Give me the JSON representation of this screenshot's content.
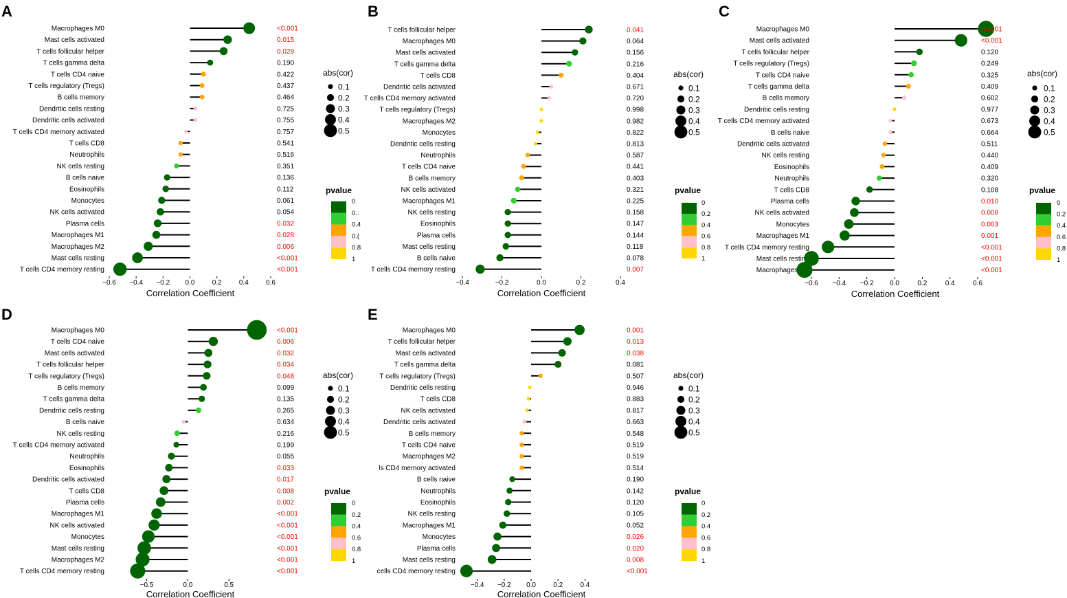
{
  "figure": {
    "xlabel": "Correlation Coefficient",
    "size_legend_title": "abs(cor)",
    "size_legend_labels": [
      "0.1",
      "0.2",
      "0.3",
      "0.4",
      "0.5"
    ],
    "pvalue_legend_title": "pvalue",
    "pvalue_legend_labels": [
      "0",
      "0.2",
      "0.4",
      "0.6",
      "0.8",
      "1"
    ],
    "pvalue_legend_labels_panel_a": [
      "0",
      "0.:",
      "0.4",
      "0.(",
      "0.8",
      "1"
    ],
    "pvalue_colors": [
      "#006400",
      "#32CD32",
      "#FFA500",
      "#FFC0CB",
      "#FFD700"
    ],
    "line_color": "#000000",
    "significant_pvalue_color": "#FF0000"
  },
  "chart_data": [
    {
      "panel": "A",
      "type": "lollipop",
      "xlabel": "Correlation Coefficient",
      "xlim": [
        -0.6,
        0.6
      ],
      "xticks": [
        -0.6,
        -0.4,
        -0.2,
        0.0,
        0.2,
        0.4,
        0.6
      ],
      "xtick_labels": [
        "−0.6",
        "−0.4",
        "−0.2",
        "0.0",
        "0.2",
        "0.4",
        "0.6"
      ],
      "categories": [
        "Macrophages M0",
        "Mast cells activated",
        "T cells follicular helper",
        "T cells gamma delta",
        "T cells CD4 naive",
        "T cells regulatory (Tregs)",
        "B cells memory",
        "Dendritic cells resting",
        "Dendritic cells activated",
        "T cells CD4 memory activated",
        "T cells CD8",
        "Neutrophils",
        "NK cells resting",
        "B cells naive",
        "Eosinophils",
        "Monocytes",
        "NK cells activated",
        "Plasma cells",
        "Macrophages M1",
        "Macrophages M2",
        "Mast cells resting",
        "T cells CD4 memory resting"
      ],
      "values": [
        0.44,
        0.28,
        0.25,
        0.15,
        0.1,
        0.09,
        0.09,
        0.04,
        0.04,
        -0.03,
        -0.07,
        -0.07,
        -0.1,
        -0.17,
        -0.18,
        -0.21,
        -0.22,
        -0.24,
        -0.25,
        -0.31,
        -0.39,
        -0.52
      ],
      "pvalues": [
        "<0.001",
        "0.015",
        "0.029",
        "0.190",
        "0.422",
        "0.437",
        "0.464",
        "0.725",
        "0.755",
        "0.757",
        "0.541",
        "0.516",
        "0.351",
        "0.136",
        "0.112",
        "0.061",
        "0.054",
        "0.032",
        "0.028",
        "0.006",
        "<0.001",
        "<0.001"
      ]
    },
    {
      "panel": "B",
      "type": "lollipop",
      "xlabel": "Correlation Coefficient",
      "xlim": [
        -0.4,
        0.4
      ],
      "xticks": [
        -0.4,
        -0.2,
        0.0,
        0.2,
        0.4
      ],
      "xtick_labels": [
        "−0.4",
        "−0.2",
        "0.0",
        "0.2",
        "0.4"
      ],
      "categories": [
        "T cells follicular helper",
        "Macrophages M0",
        "Mast cells activated",
        "T cells gamma delta",
        "T cells CD8",
        "Dendritic cells activated",
        "T cells CD4 memory activated",
        "T cells regulatory (Tregs)",
        "Macrophages M2",
        "Monocytes",
        "Dendritic cells resting",
        "Neutrophils",
        "T cells CD4 naive",
        "B cells memory",
        "NK cells activated",
        "Macrophages M1",
        "NK cells resting",
        "Eosinophils",
        "Plasma cells",
        "Mast cells resting",
        "B cells naive",
        "T cells CD4 memory resting"
      ],
      "values": [
        0.24,
        0.21,
        0.17,
        0.14,
        0.1,
        0.05,
        0.04,
        0.0,
        0.0,
        -0.02,
        -0.03,
        -0.07,
        -0.09,
        -0.1,
        -0.12,
        -0.14,
        -0.17,
        -0.17,
        -0.17,
        -0.18,
        -0.21,
        -0.31
      ],
      "pvalues": [
        "0.041",
        "0.064",
        "0.156",
        "0.216",
        "0.404",
        "0.671",
        "0.720",
        "0.998",
        "0.982",
        "0.822",
        "0.813",
        "0.587",
        "0.441",
        "0.403",
        "0.321",
        "0.225",
        "0.158",
        "0.147",
        "0.144",
        "0.118",
        "0.078",
        "0.007"
      ]
    },
    {
      "panel": "C",
      "type": "lollipop",
      "xlabel": "Correlation Coefficient",
      "xlim": [
        -0.6,
        0.6
      ],
      "xticks": [
        -0.6,
        -0.4,
        -0.2,
        0.0,
        0.2,
        0.4,
        0.6
      ],
      "xtick_labels": [
        "−0.6",
        "−0.4",
        "−0.2",
        "0.0",
        "0.2",
        "0.4",
        "0.6"
      ],
      "categories": [
        "Macrophages M0",
        "Mast cells activated",
        "T cells follicular helper",
        "T cells regulatory (Tregs)",
        "T cells CD4 naive",
        "T cells gamma delta",
        "B cells memory",
        "Dendritic cells resting",
        "T cells CD4 memory activated",
        "B cells naive",
        "Dendritic cells activated",
        "NK cells resting",
        "Eosinophils",
        "Neutrophils",
        "T cells CD8",
        "Plasma cells",
        "NK cells activated",
        "Monocytes",
        "Macrophages M1",
        "T cells CD4 memory resting",
        "Mast cells resting",
        "Macrophages M2"
      ],
      "values": [
        0.66,
        0.48,
        0.18,
        0.14,
        0.12,
        0.1,
        0.07,
        0.0,
        -0.03,
        -0.03,
        -0.07,
        -0.08,
        -0.09,
        -0.11,
        -0.18,
        -0.28,
        -0.29,
        -0.33,
        -0.36,
        -0.48,
        -0.6,
        -0.65
      ],
      "pvalues": [
        "<0.001",
        "<0.001",
        "0.120",
        "0.249",
        "0.325",
        "0.409",
        "0.602",
        "0.977",
        "0.673",
        "0.664",
        "0.511",
        "0.440",
        "0.409",
        "0.320",
        "0.108",
        "0.010",
        "0.008",
        "0.003",
        "0.001",
        "<0.001",
        "<0.001",
        "<0.001"
      ]
    },
    {
      "panel": "D",
      "type": "lollipop",
      "xlabel": "Correlation Coefficient",
      "xlim": [
        -0.63,
        0.95
      ],
      "xticks": [
        -0.5,
        0.0,
        0.5
      ],
      "xtick_labels": [
        "−0.5",
        "0.0",
        "0.5"
      ],
      "categories": [
        "Macrophages M0",
        "T cells CD4 naive",
        "Mast cells activated",
        "T cells follicular helper",
        "T cells regulatory (Tregs)",
        "B cells memory",
        "T cells gamma delta",
        "Dendritic cells resting",
        "B cells naive",
        "NK cells resting",
        "T cells CD4 memory activated",
        "Neutrophils",
        "Eosinophils",
        "Dendritic cells activated",
        "T cells CD8",
        "Plasma cells",
        "Macrophages M1",
        "NK cells activated",
        "Monocytes",
        "Mast cells resting",
        "Macrophages M2",
        "T cells CD4 memory resting"
      ],
      "values": [
        0.84,
        0.31,
        0.25,
        0.24,
        0.23,
        0.19,
        0.17,
        0.13,
        -0.05,
        -0.13,
        -0.14,
        -0.2,
        -0.23,
        -0.26,
        -0.29,
        -0.33,
        -0.38,
        -0.41,
        -0.48,
        -0.53,
        -0.55,
        -0.61
      ],
      "pvalues": [
        "<0.001",
        "0.006",
        "0.032",
        "0.034",
        "0.048",
        "0.099",
        "0.135",
        "0.265",
        "0.634",
        "0.216",
        "0.199",
        "0.055",
        "0.033",
        "0.017",
        "0.008",
        "0.002",
        "<0.001",
        "<0.001",
        "<0.001",
        "<0.001",
        "<0.001",
        "<0.001"
      ]
    },
    {
      "panel": "E",
      "type": "lollipop",
      "xlabel": "Correlation Coefficient",
      "xlim": [
        -0.49,
        0.5
      ],
      "xticks": [
        -0.4,
        -0.2,
        0.0,
        0.2,
        0.4
      ],
      "xtick_labels": [
        "−0.4",
        "−0.2",
        "0.0",
        "0.2",
        "0.4"
      ],
      "categories": [
        "Macrophages M0",
        "T cells follicular helper",
        "Mast cells activated",
        "T cells gamma delta",
        "T cells regulatory (Tregs)",
        "Dendritic cells resting",
        "T cells CD8",
        "NK cells activated",
        "Dendritic cells activated",
        "B cells memory",
        "T cells CD4 naive",
        "Macrophages M2",
        "ls CD4 memory activated",
        "B cells naive",
        "Neutrophils",
        "Eosinophils",
        "NK cells resting",
        "Macrophages M1",
        "Monocytes",
        "Plasma cells",
        "Mast cells resting",
        "cells CD4 memory resting"
      ],
      "values": [
        0.36,
        0.27,
        0.23,
        0.2,
        0.07,
        -0.01,
        -0.02,
        -0.03,
        -0.05,
        -0.07,
        -0.07,
        -0.07,
        -0.07,
        -0.14,
        -0.16,
        -0.17,
        -0.18,
        -0.21,
        -0.25,
        -0.26,
        -0.29,
        -0.48
      ],
      "pvalues": [
        "0.001",
        "0.013",
        "0.038",
        "0.081",
        "0.507",
        "0.946",
        "0.883",
        "0.817",
        "0.663",
        "0.548",
        "0.519",
        "0.519",
        "0.514",
        "0.190",
        "0.142",
        "0.120",
        "0.105",
        "0.052",
        "0.026",
        "0.020",
        "0.008",
        "<0.001"
      ]
    }
  ]
}
